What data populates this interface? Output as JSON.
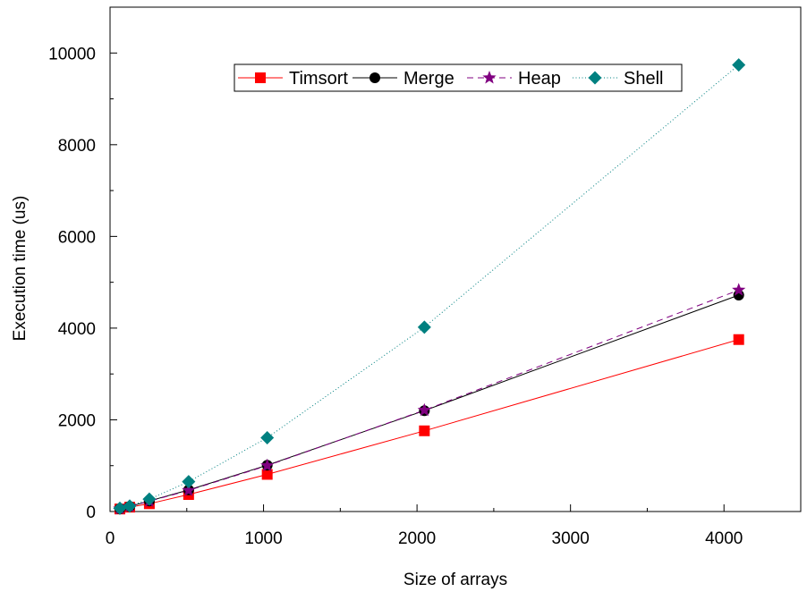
{
  "chart_data": {
    "type": "line",
    "title": "",
    "xlabel": "Size of arrays",
    "ylabel": "Execution time (us)",
    "xlim": [
      0,
      4500
    ],
    "ylim": [
      0,
      11000
    ],
    "x_ticks": [
      0,
      1000,
      2000,
      3000,
      4000
    ],
    "y_ticks": [
      0,
      2000,
      4000,
      6000,
      8000,
      10000
    ],
    "x_tick_labels": [
      "0",
      "1000",
      "2000",
      "3000",
      "4000"
    ],
    "y_tick_labels": [
      "0",
      "2000",
      "4000",
      "6000",
      "8000",
      "10000"
    ],
    "x": [
      64,
      128,
      256,
      512,
      1024,
      2048,
      4096
    ],
    "grid": false,
    "legend_position": "top-center",
    "series": [
      {
        "name": "Timsort",
        "values": [
          55,
          95,
          170,
          370,
          810,
          1760,
          3750
        ],
        "color": "#ff0000",
        "marker": "square",
        "line_style": "solid"
      },
      {
        "name": "Merge",
        "values": [
          60,
          110,
          230,
          470,
          1010,
          2200,
          4720
        ],
        "color": "#000000",
        "marker": "circle",
        "line_style": "solid"
      },
      {
        "name": "Heap",
        "values": [
          60,
          110,
          225,
          460,
          1000,
          2210,
          4830
        ],
        "color": "#800080",
        "marker": "star",
        "line_style": "dashed"
      },
      {
        "name": "Shell",
        "values": [
          70,
          120,
          270,
          650,
          1610,
          4020,
          9740
        ],
        "color": "#008080",
        "marker": "diamond",
        "line_style": "dotted"
      }
    ]
  }
}
